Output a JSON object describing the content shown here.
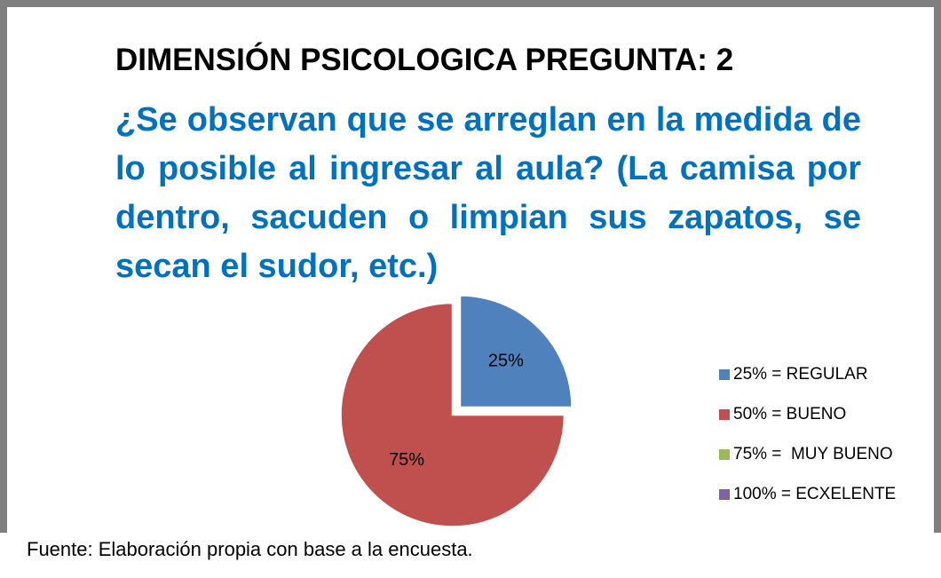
{
  "chart_data": {
    "type": "pie",
    "title": "DIMENSIÓN PSICOLOGICA PREGUNTA: 2",
    "subtitle": "¿Se observan que se arreglan en la medida de lo posible al ingresar al aula? (La camisa por dentro, sacuden o limpian sus zapatos, se secan el sudor, etc.)",
    "categories": [
      "25% = REGULAR",
      "50% = BUENO",
      "75% =  MUY BUENO",
      "100% = ECXELENTE"
    ],
    "values": [
      25,
      75,
      0,
      0
    ],
    "value_labels": [
      "25%",
      "75%",
      null,
      null
    ],
    "colors": [
      "#4f81bd",
      "#c0504d",
      "#9bbb59",
      "#8064a2"
    ],
    "legend": "right",
    "note": "Fuente: Elaboración propia con base a la encuesta."
  }
}
